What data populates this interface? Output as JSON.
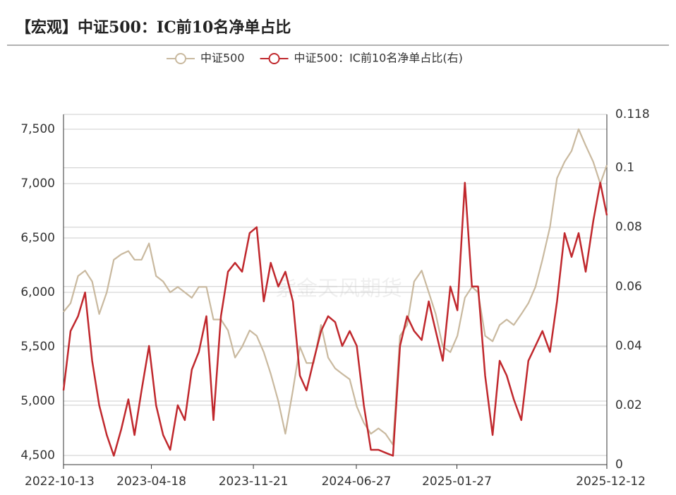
{
  "chart_data": {
    "type": "line",
    "title": "【宏观】中证500：IC前10名净单占比",
    "watermark": "紫金天风期货",
    "x": [
      "2022-10-13",
      "2022-10-28",
      "2022-11-13",
      "2022-11-28",
      "2022-12-13",
      "2022-12-28",
      "2023-01-13",
      "2023-01-28",
      "2023-02-13",
      "2023-02-28",
      "2023-03-13",
      "2023-03-28",
      "2023-04-13",
      "2023-04-28",
      "2023-05-13",
      "2023-05-28",
      "2023-06-13",
      "2023-06-28",
      "2023-07-13",
      "2023-07-28",
      "2023-08-13",
      "2023-08-28",
      "2023-09-13",
      "2023-09-28",
      "2023-10-13",
      "2023-10-28",
      "2023-11-13",
      "2023-11-28",
      "2023-12-13",
      "2023-12-28",
      "2024-01-13",
      "2024-01-28",
      "2024-02-13",
      "2024-02-28",
      "2024-03-13",
      "2024-03-28",
      "2024-04-13",
      "2024-04-28",
      "2024-05-13",
      "2024-05-28",
      "2024-06-13",
      "2024-06-28",
      "2024-07-13",
      "2024-07-28",
      "2024-08-13",
      "2024-08-28",
      "2024-09-13",
      "2024-09-28",
      "2024-10-13",
      "2024-10-28",
      "2024-11-13",
      "2024-11-28",
      "2024-12-13",
      "2024-12-28",
      "2025-01-13",
      "2025-01-28",
      "2025-02-13",
      "2025-02-28",
      "2025-03-13",
      "2025-03-28",
      "2025-04-13",
      "2025-04-28",
      "2025-05-13",
      "2025-05-28",
      "2025-06-13",
      "2025-06-28",
      "2025-07-13",
      "2025-07-28",
      "2025-08-13",
      "2025-08-28",
      "2025-09-13",
      "2025-09-28",
      "2025-10-13",
      "2025-10-28",
      "2025-11-13",
      "2025-11-28",
      "2025-12-12"
    ],
    "series": [
      {
        "name": "中证500",
        "color": "#c9b99f",
        "values": [
          5820,
          5900,
          6150,
          6200,
          6100,
          5800,
          6000,
          6300,
          6350,
          6380,
          6300,
          6300,
          6450,
          6150,
          6100,
          6000,
          6050,
          6000,
          5950,
          6050,
          6050,
          5750,
          5750,
          5650,
          5400,
          5500,
          5650,
          5600,
          5450,
          5250,
          5000,
          4700,
          5100,
          5500,
          5350,
          5350,
          5700,
          5400,
          5300,
          5250,
          5200,
          4950,
          4800,
          4700,
          4750,
          4700,
          4600,
          5600,
          5700,
          6100,
          6200,
          6000,
          5800,
          5500,
          5450,
          5600,
          5950,
          6050,
          6000,
          5600,
          5550,
          5700,
          5750,
          5700,
          5800,
          5900,
          6050,
          6300,
          6600,
          7050,
          7200,
          7300,
          7500,
          7350,
          7200,
          7000,
          7170
        ]
      },
      {
        "name": "中证500：IC前10名净单占比(右)",
        "color": "#c0282d",
        "axis": "y2",
        "values": [
          0.025,
          0.045,
          0.05,
          0.058,
          0.035,
          0.02,
          0.01,
          0.003,
          0.012,
          0.022,
          0.01,
          0.025,
          0.04,
          0.02,
          0.01,
          0.005,
          0.02,
          0.015,
          0.032,
          0.038,
          0.05,
          0.015,
          0.05,
          0.065,
          0.068,
          0.065,
          0.078,
          0.08,
          0.055,
          0.068,
          0.06,
          0.065,
          0.055,
          0.03,
          0.025,
          0.035,
          0.045,
          0.05,
          0.048,
          0.04,
          0.045,
          0.04,
          0.02,
          0.005,
          0.005,
          0.004,
          0.003,
          0.04,
          0.05,
          0.045,
          0.042,
          0.055,
          0.045,
          0.035,
          0.06,
          0.052,
          0.095,
          0.06,
          0.06,
          0.03,
          0.01,
          0.035,
          0.03,
          0.022,
          0.015,
          0.035,
          0.04,
          0.045,
          0.038,
          0.055,
          0.078,
          0.07,
          0.078,
          0.065,
          0.082,
          0.095,
          0.084
        ]
      }
    ],
    "xlim": [
      "2022-10-13",
      "2025-12-12"
    ],
    "xticks": [
      "2022-10-13",
      "2023-04-18",
      "2023-11-21",
      "2024-06-27",
      "2025-01-27",
      "2025-12-12"
    ],
    "ylim": [
      4416,
      7636
    ],
    "yticks": [
      4500,
      5000,
      5500,
      6000,
      6500,
      7000,
      7500
    ],
    "yticklabels": [
      "4,500",
      "5,000",
      "5,500",
      "6,000",
      "6,500",
      "7,000",
      "7,500"
    ],
    "y2lim": [
      0,
      0.118
    ],
    "y2ticks": [
      0,
      0.02,
      0.04,
      0.06,
      0.08,
      0.1,
      0.118
    ],
    "grid": true
  }
}
